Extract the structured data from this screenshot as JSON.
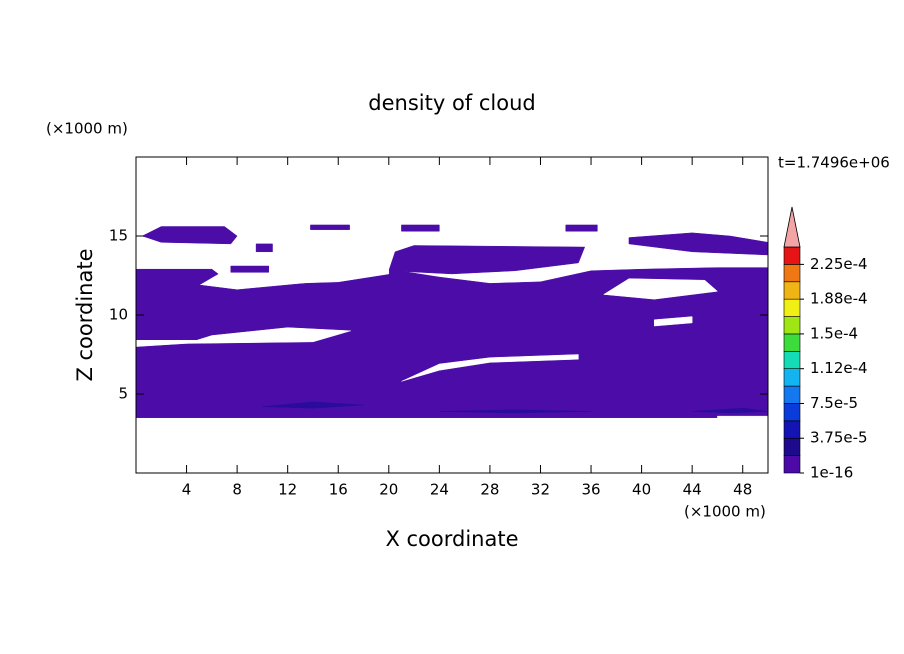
{
  "chart_data": {
    "type": "contour",
    "title": "density of cloud",
    "xlabel": "X coordinate",
    "ylabel": "Z coordinate",
    "xunit": "(×1000 m)",
    "yunit": "(×1000 m)",
    "time_label": "t=1.7496e+06",
    "xlim": [
      0,
      50
    ],
    "ylim": [
      0,
      20
    ],
    "xticks": [
      4,
      8,
      12,
      16,
      20,
      24,
      28,
      32,
      36,
      40,
      44,
      48
    ],
    "yticks": [
      5,
      10,
      15
    ],
    "regions": [
      {
        "color": "#4b0ca8",
        "points": [
          [
            0,
            3.5
          ],
          [
            50,
            3.5
          ],
          [
            50,
            13
          ],
          [
            46,
            13
          ],
          [
            40,
            12.9
          ],
          [
            36,
            12.8
          ],
          [
            32,
            12.1
          ],
          [
            28,
            12.0
          ],
          [
            24,
            12.4
          ],
          [
            20,
            12.9
          ],
          [
            16,
            12.2
          ],
          [
            12,
            11.9
          ],
          [
            8,
            11.6
          ],
          [
            5,
            11.9
          ],
          [
            0,
            11.6
          ]
        ]
      },
      {
        "color": "#4b0ca8",
        "points": [
          [
            0,
            11.6
          ],
          [
            5,
            11.9
          ],
          [
            6.5,
            12.6
          ],
          [
            6,
            12.9
          ],
          [
            0,
            12.9
          ]
        ]
      },
      {
        "color": "#4b0ca8",
        "points": [
          [
            20,
            12.8
          ],
          [
            25,
            12.6
          ],
          [
            30,
            12.8
          ],
          [
            35,
            13.3
          ],
          [
            35.5,
            14.3
          ],
          [
            22,
            14.4
          ],
          [
            20.5,
            14.0
          ]
        ]
      },
      {
        "color": "#4b0ca8",
        "points": [
          [
            39,
            14.5
          ],
          [
            44,
            14.0
          ],
          [
            50,
            13.8
          ],
          [
            50,
            14.6
          ],
          [
            47,
            15.0
          ],
          [
            44,
            15.2
          ],
          [
            39,
            14.9
          ]
        ]
      },
      {
        "color": "#4b0ca8",
        "points": [
          [
            0.5,
            15.0
          ],
          [
            2,
            15.6
          ],
          [
            7,
            15.6
          ],
          [
            8,
            15.0
          ],
          [
            7.5,
            14.5
          ],
          [
            2,
            14.6
          ]
        ]
      },
      {
        "color": "#4b0ca8",
        "points": [
          [
            13.8,
            15.4
          ],
          [
            16.9,
            15.4
          ],
          [
            16.9,
            15.7
          ],
          [
            13.8,
            15.7
          ]
        ]
      },
      {
        "color": "#4b0ca8",
        "points": [
          [
            21,
            15.3
          ],
          [
            24,
            15.3
          ],
          [
            24,
            15.7
          ],
          [
            21,
            15.7
          ]
        ]
      },
      {
        "color": "#4b0ca8",
        "points": [
          [
            34,
            15.3
          ],
          [
            36.5,
            15.3
          ],
          [
            36.5,
            15.7
          ],
          [
            34,
            15.7
          ]
        ]
      },
      {
        "color": "#4b0ca8",
        "points": [
          [
            9.5,
            14.0
          ],
          [
            10.8,
            14.0
          ],
          [
            10.8,
            14.5
          ],
          [
            9.5,
            14.5
          ]
        ]
      },
      {
        "color": "#4b0ca8",
        "points": [
          [
            7.5,
            12.7
          ],
          [
            10.5,
            12.7
          ],
          [
            10.5,
            13.1
          ],
          [
            7.5,
            13.1
          ]
        ]
      },
      {
        "color": "#ffffff",
        "points": [
          [
            0,
            8.0
          ],
          [
            4,
            8.2
          ],
          [
            5,
            8.4
          ],
          [
            0,
            8.4
          ]
        ]
      },
      {
        "color": "#ffffff",
        "points": [
          [
            4,
            8.2
          ],
          [
            14,
            8.3
          ],
          [
            17,
            9.0
          ],
          [
            12,
            9.2
          ],
          [
            6,
            8.7
          ]
        ]
      },
      {
        "color": "#ffffff",
        "points": [
          [
            21,
            5.8
          ],
          [
            24,
            6.5
          ],
          [
            28,
            7.0
          ],
          [
            35,
            7.2
          ],
          [
            35,
            7.5
          ],
          [
            28,
            7.3
          ],
          [
            24,
            6.9
          ]
        ]
      },
      {
        "color": "#ffffff",
        "points": [
          [
            41,
            9.3
          ],
          [
            44,
            9.5
          ],
          [
            44,
            9.9
          ],
          [
            41,
            9.7
          ]
        ]
      },
      {
        "color": "#ffffff",
        "points": [
          [
            37,
            11.3
          ],
          [
            41,
            11.0
          ],
          [
            46,
            11.5
          ],
          [
            45,
            12.2
          ],
          [
            39,
            12.3
          ]
        ]
      },
      {
        "color": "#ffffff",
        "points": [
          [
            12,
            12.0
          ],
          [
            16,
            12.1
          ],
          [
            20,
            12.6
          ],
          [
            20,
            12.9
          ],
          [
            16,
            12.5
          ],
          [
            12,
            12.3
          ]
        ]
      },
      {
        "color": "#ffffff",
        "points": [
          [
            46,
            3.5
          ],
          [
            50,
            3.5
          ],
          [
            50,
            3.6
          ],
          [
            46,
            3.6
          ]
        ]
      },
      {
        "color": "#2a0c9a",
        "points": [
          [
            10,
            4.2
          ],
          [
            14,
            4.5
          ],
          [
            18,
            4.3
          ],
          [
            14,
            4.1
          ]
        ]
      },
      {
        "color": "#2a0c9a",
        "points": [
          [
            24,
            3.9
          ],
          [
            30,
            4.0
          ],
          [
            36,
            3.9
          ],
          [
            30,
            3.8
          ]
        ]
      },
      {
        "color": "#2a0c9a",
        "points": [
          [
            44,
            3.9
          ],
          [
            48,
            4.1
          ],
          [
            50,
            3.9
          ],
          [
            47,
            3.8
          ]
        ]
      }
    ],
    "colorbar": {
      "colors": [
        "#4b0aa8",
        "#1e0a8c",
        "#1414b4",
        "#0a3cdc",
        "#1478f0",
        "#14b4f0",
        "#14dcb4",
        "#3cdc3c",
        "#a0e614",
        "#f0f014",
        "#f0b414",
        "#f07814",
        "#e61414"
      ],
      "extend_color": "#f4a4a4",
      "clim": [
        1e-16,
        0.00024375
      ],
      "ticks": [
        {
          "value": 1e-16,
          "label": "1e-16"
        },
        {
          "value": 3.75e-05,
          "label": "3.75e-5"
        },
        {
          "value": 7.5e-05,
          "label": "7.5e-5"
        },
        {
          "value": 0.0001125,
          "label": "1.12e-4"
        },
        {
          "value": 0.00015,
          "label": "1.5e-4"
        },
        {
          "value": 0.0001875,
          "label": "1.88e-4"
        },
        {
          "value": 0.000225,
          "label": "2.25e-4"
        }
      ]
    }
  }
}
